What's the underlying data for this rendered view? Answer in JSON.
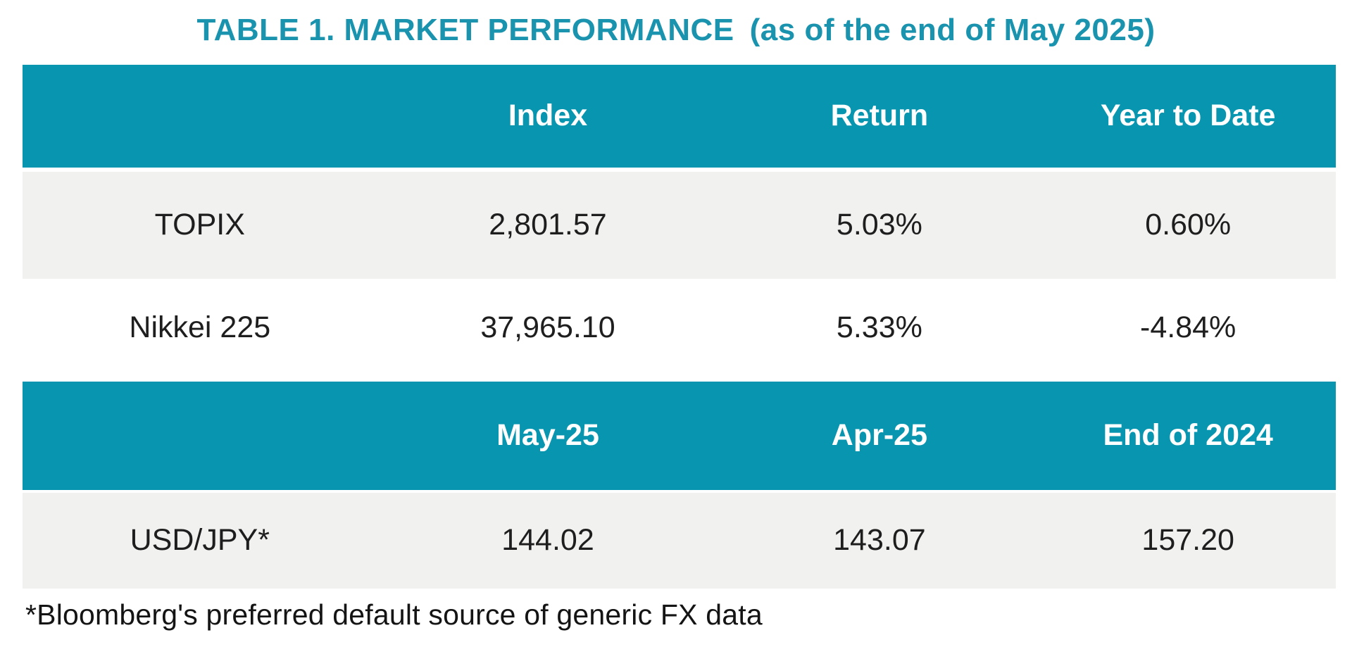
{
  "page": {
    "title_main": "TABLE 1. MARKET PERFORMANCE",
    "title_suffix": "(as of the end of May 2025)",
    "footnote": "*Bloomberg's preferred default source of generic FX data"
  },
  "colors": {
    "header_teal": "#0895af",
    "title_teal": "#1a93ae",
    "row_gray": "#f1f1f0",
    "row_white": "#ffffff",
    "header_text": "#ffffff",
    "body_text": "#1e1e1e"
  },
  "chart_data": [
    {
      "type": "table",
      "title": "TABLE 1. MARKET PERFORMANCE (as of the end of May 2025)",
      "columns": [
        "",
        "Index",
        "Return",
        "Year to Date"
      ],
      "rows": [
        [
          "TOPIX",
          "2,801.57",
          "5.03%",
          "0.60%"
        ],
        [
          "Nikkei 225",
          "37,965.10",
          "5.33%",
          "-4.84%"
        ]
      ],
      "layout": "header row teal with white bold text; TOPIX row light gray; Nikkei row white; all cells center-aligned"
    },
    {
      "type": "table",
      "columns": [
        "",
        "May-25",
        "Apr-25",
        "End of 2024"
      ],
      "rows": [
        [
          "USD/JPY*",
          "144.02",
          "143.07",
          "157.20"
        ]
      ],
      "footnote": "*Bloomberg's preferred default source of generic FX data",
      "layout": "header row teal with white bold text; USD/JPY row light gray; all cells center-aligned"
    }
  ]
}
